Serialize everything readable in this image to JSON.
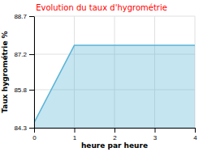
{
  "chart_data": {
    "type": "area",
    "title": "Evolution du taux d'hygrométrie",
    "title_color": "#ff0000",
    "xlabel": "heure par heure",
    "ylabel": "Taux hygrométrie %",
    "x": [
      0,
      1,
      2,
      3,
      4
    ],
    "values": [
      84.5,
      87.55,
      87.55,
      87.55,
      87.55
    ],
    "color": "#5ab4d6",
    "xlim": [
      0,
      4
    ],
    "ylim": [
      84.3,
      88.7
    ],
    "xticks": [
      0,
      1,
      2,
      3,
      4
    ],
    "yticks": [
      84.3,
      85.8,
      87.2,
      88.7
    ],
    "grid": true
  }
}
